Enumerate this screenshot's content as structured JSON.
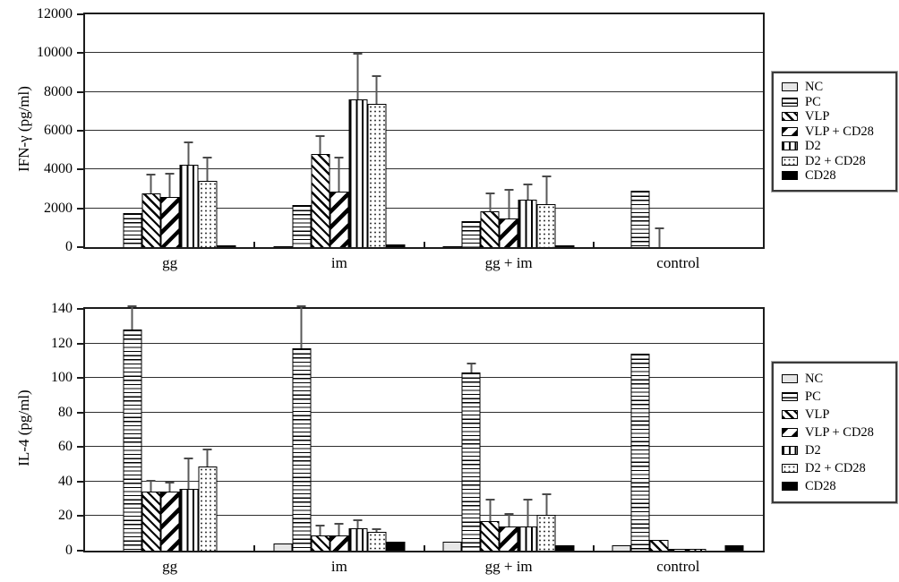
{
  "figure": {
    "background": "#ffffff",
    "colors": {
      "bar_border": "#000000",
      "gridline": "#2e2e2e",
      "error_bar": "#595959",
      "nc_fill": "#e6e6e6"
    }
  },
  "chart_data": [
    {
      "id": "ifn_gamma",
      "type": "bar",
      "title": "",
      "xlabel": "",
      "ylabel": "IFN-γ (pg/ml)",
      "ylim": [
        0,
        12000
      ],
      "ytick_step": 2000,
      "yticks": [
        "0",
        "2000",
        "4000",
        "6000",
        "8000",
        "10000",
        "12000"
      ],
      "grid": true,
      "legend_position": "right",
      "error_bars": "upper",
      "categories": [
        "gg",
        "im",
        "gg + im",
        "control"
      ],
      "series": [
        {
          "name": "NC",
          "pattern": "nc",
          "values": [
            0,
            60,
            40,
            0
          ],
          "errors": [
            0,
            0,
            0,
            0
          ]
        },
        {
          "name": "PC",
          "pattern": "pc",
          "values": [
            1750,
            2150,
            1350,
            2900
          ],
          "errors": [
            0,
            0,
            0,
            0
          ]
        },
        {
          "name": "VLP",
          "pattern": "vlp",
          "values": [
            2750,
            4800,
            1850,
            0
          ],
          "errors": [
            1050,
            950,
            950,
            1000
          ]
        },
        {
          "name": "VLP + CD28",
          "pattern": "vlp-cd28",
          "values": [
            2600,
            2850,
            1500,
            0
          ],
          "errors": [
            1250,
            1800,
            1500,
            0
          ]
        },
        {
          "name": "D2",
          "pattern": "d2",
          "values": [
            4250,
            7600,
            2450,
            0
          ],
          "errors": [
            1200,
            2400,
            850,
            0
          ]
        },
        {
          "name": "D2 + CD28",
          "pattern": "d2-cd28",
          "values": [
            3400,
            7400,
            2200,
            0
          ],
          "errors": [
            1250,
            1450,
            1500,
            0
          ]
        },
        {
          "name": "CD28",
          "pattern": "cd28",
          "values": [
            100,
            150,
            100,
            0
          ],
          "errors": [
            0,
            0,
            0,
            0
          ]
        }
      ]
    },
    {
      "id": "il_4",
      "type": "bar",
      "title": "",
      "xlabel": "",
      "ylabel": "IL-4 (pg/ml)",
      "ylim": [
        0,
        140
      ],
      "ytick_step": 20,
      "yticks": [
        "0",
        "20",
        "40",
        "60",
        "80",
        "100",
        "120",
        "140"
      ],
      "grid": true,
      "legend_position": "right",
      "error_bars": "upper",
      "categories": [
        "gg",
        "im",
        "gg + im",
        "control"
      ],
      "series": [
        {
          "name": "NC",
          "pattern": "nc",
          "values": [
            0,
            4,
            5,
            3
          ],
          "errors": [
            0,
            0,
            0,
            0
          ]
        },
        {
          "name": "PC",
          "pattern": "pc",
          "values": [
            128,
            117,
            103,
            114
          ],
          "errors": [
            14,
            25,
            6,
            0
          ]
        },
        {
          "name": "VLP",
          "pattern": "vlp",
          "values": [
            34,
            9,
            17,
            6
          ],
          "errors": [
            7,
            6,
            13,
            0
          ]
        },
        {
          "name": "VLP + CD28",
          "pattern": "vlp-cd28",
          "values": [
            34,
            9,
            14,
            1
          ],
          "errors": [
            6,
            7,
            8,
            0
          ]
        },
        {
          "name": "D2",
          "pattern": "d2",
          "values": [
            36,
            13,
            14,
            1
          ],
          "errors": [
            18,
            5,
            16,
            0
          ]
        },
        {
          "name": "D2 + CD28",
          "pattern": "d2-cd28",
          "values": [
            49,
            11,
            21,
            0
          ],
          "errors": [
            10,
            2,
            12,
            0
          ]
        },
        {
          "name": "CD28",
          "pattern": "cd28",
          "values": [
            0,
            5,
            3,
            3
          ],
          "errors": [
            0,
            0,
            0,
            0
          ]
        }
      ]
    }
  ]
}
